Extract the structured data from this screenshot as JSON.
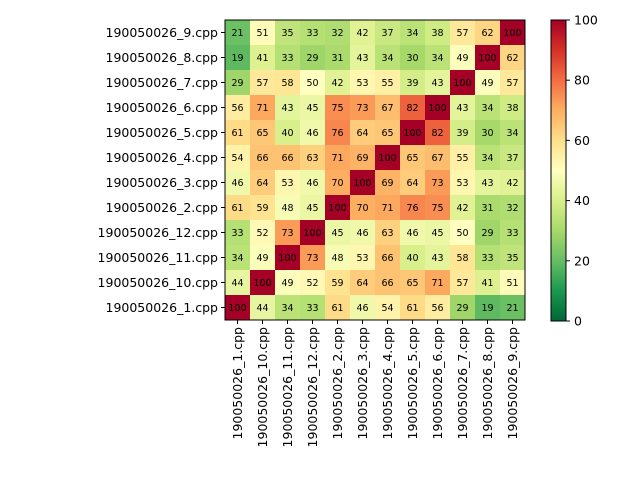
{
  "chart_data": {
    "type": "heatmap",
    "title": "",
    "xlabel": "",
    "ylabel": "",
    "colormap": "RdYlGn_r",
    "vmin": 0,
    "vmax": 100,
    "colorbar_ticks": [
      "0",
      "20",
      "40",
      "60",
      "80",
      "100"
    ],
    "colorbar_tick_values": [
      0,
      20,
      40,
      60,
      80,
      100
    ],
    "x_labels": [
      "190050026_1.cpp",
      "190050026_10.cpp",
      "190050026_11.cpp",
      "190050026_12.cpp",
      "190050026_2.cpp",
      "190050026_3.cpp",
      "190050026_4.cpp",
      "190050026_5.cpp",
      "190050026_6.cpp",
      "190050026_7.cpp",
      "190050026_8.cpp",
      "190050026_9.cpp"
    ],
    "y_labels": [
      "190050026_9.cpp",
      "190050026_8.cpp",
      "190050026_7.cpp",
      "190050026_6.cpp",
      "190050026_5.cpp",
      "190050026_4.cpp",
      "190050026_3.cpp",
      "190050026_2.cpp",
      "190050026_12.cpp",
      "190050026_11.cpp",
      "190050026_10.cpp",
      "190050026_1.cpp"
    ],
    "values": [
      [
        21,
        51,
        35,
        33,
        32,
        42,
        37,
        34,
        38,
        57,
        62,
        100
      ],
      [
        19,
        41,
        33,
        29,
        31,
        43,
        34,
        30,
        34,
        49,
        100,
        62
      ],
      [
        29,
        57,
        58,
        50,
        42,
        53,
        55,
        39,
        43,
        100,
        49,
        57
      ],
      [
        56,
        71,
        43,
        45,
        75,
        73,
        67,
        82,
        100,
        43,
        34,
        38
      ],
      [
        61,
        65,
        40,
        46,
        76,
        64,
        65,
        100,
        82,
        39,
        30,
        34
      ],
      [
        54,
        66,
        66,
        63,
        71,
        69,
        100,
        65,
        67,
        55,
        34,
        37
      ],
      [
        46,
        64,
        53,
        46,
        70,
        100,
        69,
        64,
        73,
        53,
        43,
        42
      ],
      [
        61,
        59,
        48,
        45,
        100,
        70,
        71,
        76,
        75,
        42,
        31,
        32
      ],
      [
        33,
        52,
        73,
        100,
        45,
        46,
        63,
        46,
        45,
        50,
        29,
        33
      ],
      [
        34,
        49,
        100,
        73,
        48,
        53,
        66,
        40,
        43,
        58,
        33,
        35
      ],
      [
        44,
        100,
        49,
        52,
        59,
        64,
        66,
        65,
        71,
        57,
        41,
        51
      ],
      [
        100,
        44,
        34,
        33,
        61,
        46,
        54,
        61,
        56,
        29,
        19,
        21
      ]
    ]
  }
}
